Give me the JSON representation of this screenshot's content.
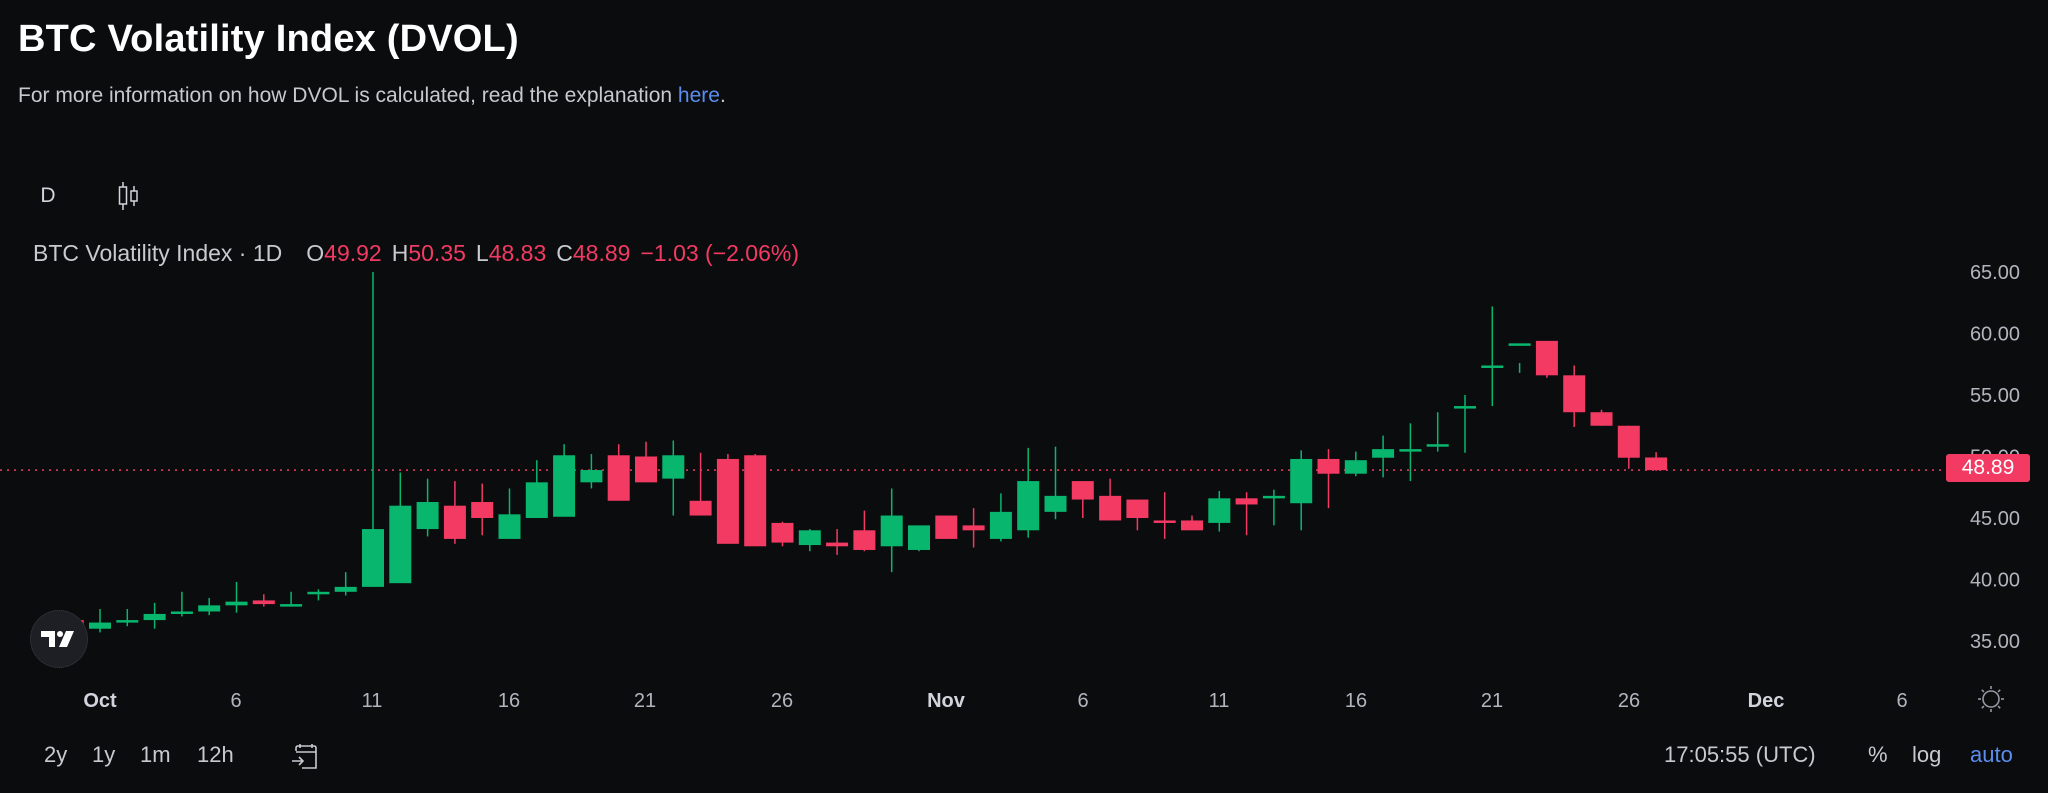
{
  "header": {
    "title": "BTC Volatility Index (DVOL)",
    "subtitle_prefix": "For more information on how DVOL is calculated, read the explanation ",
    "subtitle_link": "here",
    "subtitle_suffix": "."
  },
  "toolbar": {
    "interval_label": "D",
    "chart_type_icon": "candlestick-icon"
  },
  "legend": {
    "symbol": "BTC Volatility Index · 1D",
    "open_label": "O",
    "open": "49.92",
    "high_label": "H",
    "high": "50.35",
    "low_label": "L",
    "low": "48.83",
    "close_label": "C",
    "close": "48.89",
    "change": "−1.03 (−2.06%)"
  },
  "price_axis": {
    "ticks": [
      "65.00",
      "60.00",
      "55.00",
      "50.00",
      "45.00",
      "40.00",
      "35.00"
    ],
    "last_price": "48.89"
  },
  "time_axis": {
    "ticks": [
      {
        "label": "Oct",
        "month": true
      },
      {
        "label": "6",
        "month": false
      },
      {
        "label": "11",
        "month": false
      },
      {
        "label": "16",
        "month": false
      },
      {
        "label": "21",
        "month": false
      },
      {
        "label": "26",
        "month": false
      },
      {
        "label": "Nov",
        "month": true
      },
      {
        "label": "6",
        "month": false
      },
      {
        "label": "11",
        "month": false
      },
      {
        "label": "16",
        "month": false
      },
      {
        "label": "21",
        "month": false
      },
      {
        "label": "26",
        "month": false
      },
      {
        "label": "Dec",
        "month": true
      },
      {
        "label": "6",
        "month": false
      }
    ],
    "settings_icon": "gear-icon"
  },
  "bottom_bar": {
    "ranges": [
      "2y",
      "1y",
      "1m",
      "12h"
    ],
    "goto_date_icon": "calendar-goto-icon",
    "time": "17:05:55 (UTC)",
    "percent_label": "%",
    "log_label": "log",
    "auto_label": "auto"
  },
  "colors": {
    "up": "#08b66e",
    "down": "#f23a63",
    "background": "#0b0c0e",
    "link": "#5b8def"
  },
  "chart_data": {
    "type": "candlestick",
    "title": "BTC Volatility Index · 1D",
    "xlabel": "",
    "ylabel": "",
    "ylim": [
      32,
      67
    ],
    "grid": false,
    "last_price_line": 48.89,
    "x": [
      "Sep 30",
      "Oct 1",
      "Oct 2",
      "Oct 3",
      "Oct 4",
      "Oct 5",
      "Oct 6",
      "Oct 7",
      "Oct 8",
      "Oct 9",
      "Oct 10",
      "Oct 11",
      "Oct 12",
      "Oct 13",
      "Oct 14",
      "Oct 15",
      "Oct 16",
      "Oct 17",
      "Oct 18",
      "Oct 19",
      "Oct 20",
      "Oct 21",
      "Oct 22",
      "Oct 23",
      "Oct 24",
      "Oct 25",
      "Oct 26",
      "Oct 27",
      "Oct 28",
      "Oct 29",
      "Oct 30",
      "Oct 31",
      "Nov 1",
      "Nov 2",
      "Nov 3",
      "Nov 4",
      "Nov 5",
      "Nov 6",
      "Nov 7",
      "Nov 8",
      "Nov 9",
      "Nov 10",
      "Nov 11",
      "Nov 12",
      "Nov 13",
      "Nov 14",
      "Nov 15",
      "Nov 16",
      "Nov 17",
      "Nov 18",
      "Nov 19",
      "Nov 20",
      "Nov 21",
      "Nov 22",
      "Nov 23",
      "Nov 24",
      "Nov 25",
      "Nov 26",
      "Nov 27"
    ],
    "open": [
      36.7,
      36.0,
      36.5,
      36.7,
      37.2,
      37.4,
      37.9,
      38.3,
      38.0,
      38.8,
      39.0,
      39.4,
      39.7,
      44.1,
      46.0,
      46.3,
      43.3,
      45.0,
      45.1,
      47.9,
      50.1,
      50.0,
      48.2,
      46.4,
      49.8,
      50.1,
      44.6,
      42.8,
      43.0,
      44.0,
      42.7,
      42.4,
      45.2,
      44.4,
      43.3,
      44.0,
      45.5,
      48.0,
      46.8,
      46.5,
      44.8,
      44.8,
      44.6,
      46.6,
      46.6,
      46.2,
      49.8,
      48.6,
      49.9,
      50.6,
      50.8,
      54.1,
      57.4,
      59.2,
      59.4,
      56.6,
      53.6,
      52.5,
      49.92
    ],
    "high": [
      36.9,
      37.6,
      37.6,
      38.1,
      39.0,
      38.5,
      39.8,
      38.8,
      39.0,
      39.2,
      40.6,
      65.0,
      48.7,
      48.2,
      48.0,
      47.8,
      47.4,
      49.7,
      51.0,
      50.2,
      51.0,
      51.2,
      51.3,
      50.3,
      50.2,
      50.2,
      44.7,
      44.1,
      44.1,
      45.6,
      47.4,
      43.6,
      45.2,
      45.8,
      47.0,
      50.7,
      50.8,
      47.6,
      48.2,
      46.0,
      47.1,
      45.2,
      47.2,
      47.1,
      47.3,
      50.5,
      50.6,
      50.4,
      51.7,
      52.7,
      53.6,
      55.0,
      62.2,
      57.6,
      59.3,
      57.4,
      53.8,
      52.5,
      50.35
    ],
    "low": [
      36.4,
      35.7,
      36.2,
      36.0,
      37.0,
      37.1,
      37.3,
      37.8,
      37.8,
      38.3,
      38.7,
      39.4,
      43.7,
      43.5,
      42.9,
      43.6,
      44.2,
      45.0,
      45.2,
      47.4,
      48.6,
      48.4,
      45.2,
      45.3,
      47.1,
      44.9,
      42.7,
      42.3,
      42.0,
      42.3,
      40.6,
      42.3,
      43.3,
      42.6,
      43.1,
      43.4,
      44.9,
      45.0,
      44.8,
      44.0,
      43.3,
      44.3,
      43.9,
      43.6,
      44.4,
      44.0,
      45.8,
      48.4,
      48.3,
      48.0,
      50.4,
      50.3,
      54.1,
      56.8,
      56.4,
      52.4,
      52.5,
      49.0,
      48.83
    ],
    "close": [
      36.0,
      36.5,
      36.7,
      37.2,
      37.4,
      37.9,
      38.2,
      38.0,
      38.0,
      39.0,
      39.4,
      44.1,
      46.0,
      46.3,
      43.3,
      45.0,
      45.3,
      47.9,
      50.1,
      48.9,
      46.4,
      47.9,
      50.1,
      45.2,
      42.9,
      42.7,
      43.0,
      44.0,
      42.7,
      42.4,
      45.2,
      44.4,
      43.3,
      44.0,
      45.5,
      48.0,
      46.8,
      46.5,
      44.8,
      45.0,
      44.6,
      44.0,
      46.6,
      46.1,
      46.8,
      49.8,
      48.6,
      49.7,
      50.6,
      50.6,
      51.0,
      54.1,
      57.4,
      59.2,
      56.6,
      53.6,
      52.5,
      49.9,
      48.89
    ]
  }
}
